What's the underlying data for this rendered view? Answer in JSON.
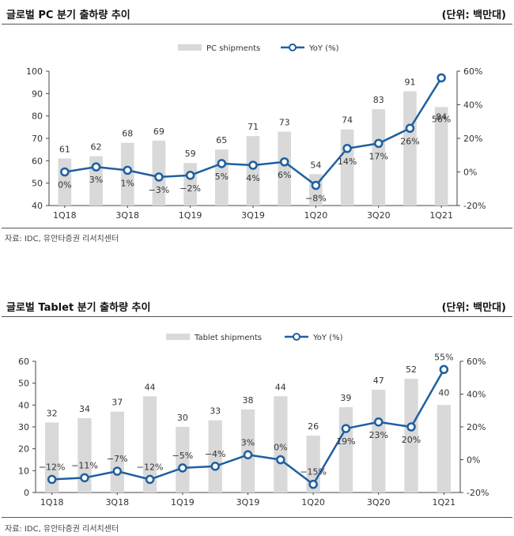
{
  "chart_data": [
    {
      "type": "bar",
      "title": "글로벌 PC 분기 출하량 추이",
      "unit": "(단위: 백만대)",
      "source": "자료: IDC, 유안타증권 리서치센터",
      "legend": {
        "bar": "PC shipments",
        "line": "YoY (%)"
      },
      "legend_position": "top-center",
      "categories": [
        "1Q18",
        "2Q18",
        "3Q18",
        "4Q18",
        "1Q19",
        "2Q19",
        "3Q19",
        "4Q19",
        "1Q20",
        "2Q20",
        "3Q20",
        "4Q20",
        "1Q21"
      ],
      "x_tick_labels": [
        "1Q18",
        "3Q18",
        "1Q19",
        "3Q19",
        "1Q20",
        "3Q20",
        "1Q21"
      ],
      "series": [
        {
          "name": "PC shipments",
          "kind": "bar",
          "axis": "left",
          "values": [
            61,
            62,
            68,
            69,
            59,
            65,
            71,
            73,
            54,
            74,
            83,
            91,
            84
          ],
          "value_labels": [
            "61",
            "62",
            "68",
            "69",
            "59",
            "65",
            "71",
            "73",
            "54",
            "74",
            "83",
            "91",
            "84"
          ]
        },
        {
          "name": "YoY (%)",
          "kind": "line",
          "axis": "right",
          "values": [
            0,
            3,
            1,
            -3,
            -2,
            5,
            4,
            6,
            -8,
            14,
            17,
            26,
            56
          ],
          "value_labels": [
            "0%",
            "3%",
            "1%",
            "−3%",
            "−2%",
            "5%",
            "4%",
            "6%",
            "−8%",
            "14%",
            "17%",
            "26%",
            "56%"
          ]
        }
      ],
      "y_left": {
        "min": 40,
        "max": 100,
        "step": 10,
        "ticks": [
          "40",
          "50",
          "60",
          "70",
          "80",
          "90",
          "100"
        ]
      },
      "y_right": {
        "min": -20,
        "max": 60,
        "step": 20,
        "ticks": [
          "-20%",
          "0%",
          "20%",
          "40%",
          "60%"
        ]
      },
      "grid": false
    },
    {
      "type": "bar",
      "title": "글로벌 Tablet 분기 출하량 추이",
      "unit": "(단위: 백만대)",
      "source": "자료: IDC, 유안타증권 리서치센터",
      "legend": {
        "bar": "Tablet shipments",
        "line": "YoY (%)"
      },
      "legend_position": "top-center",
      "categories": [
        "1Q18",
        "2Q18",
        "3Q18",
        "4Q18",
        "1Q19",
        "2Q19",
        "3Q19",
        "4Q19",
        "1Q20",
        "2Q20",
        "3Q20",
        "4Q20",
        "1Q21"
      ],
      "x_tick_labels": [
        "1Q18",
        "3Q18",
        "1Q19",
        "3Q19",
        "1Q20",
        "3Q20",
        "1Q21"
      ],
      "series": [
        {
          "name": "Tablet shipments",
          "kind": "bar",
          "axis": "left",
          "values": [
            32,
            34,
            37,
            44,
            30,
            33,
            38,
            44,
            26,
            39,
            47,
            52,
            40
          ],
          "value_labels": [
            "32",
            "34",
            "37",
            "44",
            "30",
            "33",
            "38",
            "44",
            "26",
            "39",
            "47",
            "52",
            "40"
          ]
        },
        {
          "name": "YoY (%)",
          "kind": "line",
          "axis": "right",
          "values": [
            -12,
            -11,
            -7,
            -12,
            -5,
            -4,
            3,
            0,
            -15,
            19,
            23,
            20,
            55
          ],
          "value_labels": [
            "−12%",
            "−11%",
            "−7%",
            "−12%",
            "−5%",
            "−4%",
            "3%",
            "0%",
            "−15%",
            "19%",
            "23%",
            "20%",
            "55%"
          ]
        }
      ],
      "y_left": {
        "min": 0,
        "max": 60,
        "step": 10,
        "ticks": [
          "0",
          "10",
          "20",
          "30",
          "40",
          "50",
          "60"
        ]
      },
      "y_right": {
        "min": -20,
        "max": 60,
        "step": 20,
        "ticks": [
          "-20%",
          "0%",
          "20%",
          "40%",
          "60%"
        ]
      },
      "grid": false
    }
  ],
  "colors": {
    "bar": "#d9d9d9",
    "line": "#1f5fa0",
    "marker_fill": "#ffffff",
    "axis": "#444444",
    "text": "#333333"
  }
}
